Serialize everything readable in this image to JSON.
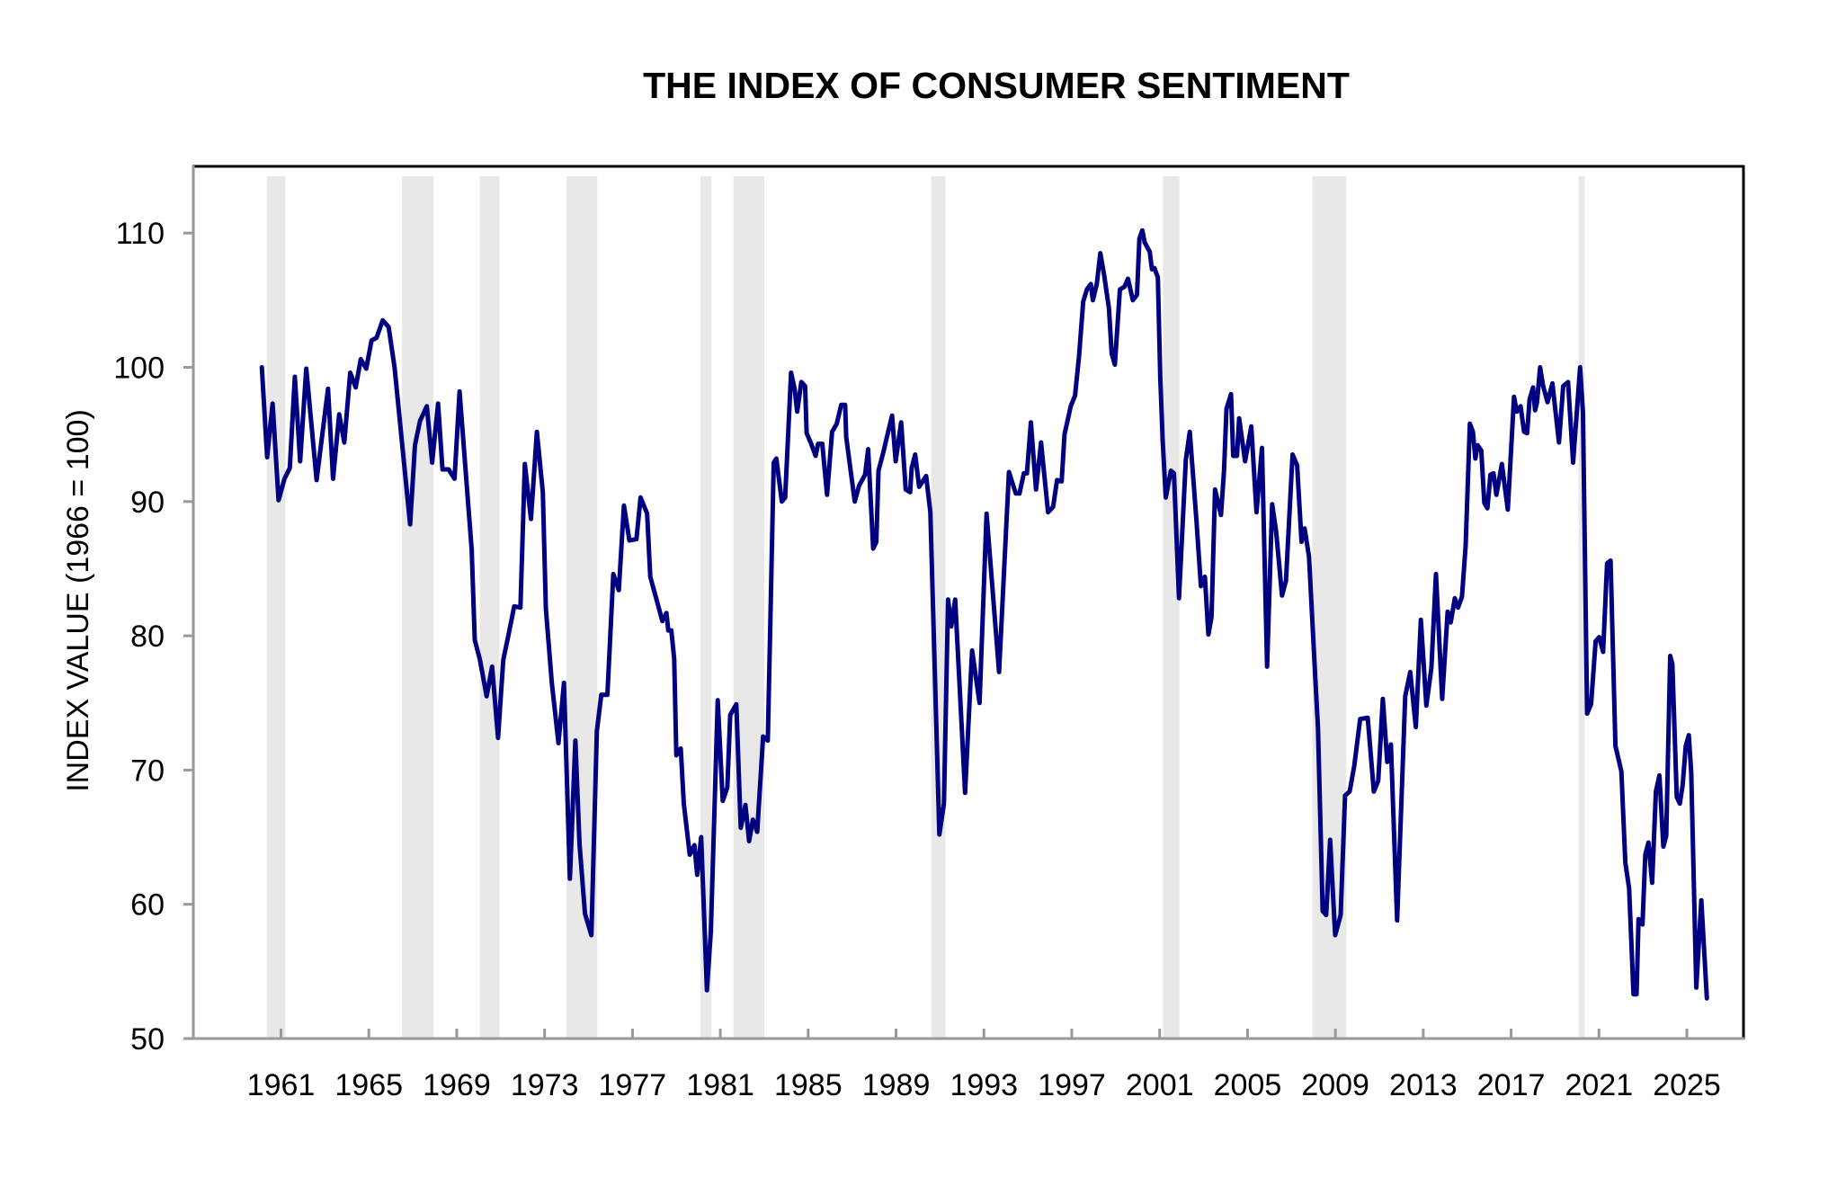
{
  "chart_data": {
    "type": "line",
    "title": "THE INDEX OF CONSUMER SENTIMENT",
    "xlabel": "",
    "ylabel": "INDEX VALUE (1966 = 100)",
    "xlim": [
      1959.5,
      2027.2
    ],
    "ylim": [
      50,
      114
    ],
    "grid": false,
    "legend": null,
    "x_ticks": [
      1961,
      1965,
      1969,
      1973,
      1977,
      1981,
      1985,
      1989,
      1993,
      1997,
      2001,
      2005,
      2009,
      2013,
      2017,
      2021,
      2025
    ],
    "x_tick_labels": [
      "1961",
      "1965",
      "1969",
      "1973",
      "1977",
      "1981",
      "1985",
      "1989",
      "1993",
      "1997",
      "2001",
      "2005",
      "2009",
      "2013",
      "2017",
      "2021",
      "2025"
    ],
    "y_ticks": [
      50,
      60,
      70,
      80,
      90,
      100,
      110
    ],
    "y_tick_labels": [
      "50",
      "60",
      "70",
      "80",
      "90",
      "100",
      "110"
    ],
    "colors": {
      "line": "#000080",
      "recession_band": "#e8e8e8",
      "axis": "#999999",
      "frame": "#000000"
    },
    "recession_bands": [
      [
        1960.35,
        1961.2
      ],
      [
        1966.5,
        1967.95
      ],
      [
        1970.05,
        1970.95
      ],
      [
        1974.0,
        1975.4
      ],
      [
        1980.1,
        1980.6
      ],
      [
        1981.6,
        1983.0
      ],
      [
        1990.6,
        1991.25
      ],
      [
        2001.15,
        2001.9
      ],
      [
        2007.95,
        2009.5
      ],
      [
        2020.07,
        2020.35
      ]
    ],
    "series": [
      {
        "name": "Index of Consumer Sentiment",
        "x": [
          1960.13,
          1960.37,
          1960.62,
          1960.89,
          1961.16,
          1961.4,
          1961.63,
          1961.87,
          1962.15,
          1962.62,
          1963.14,
          1963.37,
          1963.65,
          1963.88,
          1964.15,
          1964.4,
          1964.63,
          1964.88,
          1965.12,
          1965.35,
          1965.63,
          1965.9,
          1966.17,
          1966.88,
          1967.1,
          1967.33,
          1967.64,
          1967.88,
          1968.15,
          1968.35,
          1968.63,
          1968.9,
          1969.13,
          1969.68,
          1969.82,
          1970.06,
          1970.36,
          1970.61,
          1970.88,
          1971.12,
          1971.36,
          1971.62,
          1971.9,
          1972.1,
          1972.38,
          1972.65,
          1972.92,
          1973.06,
          1973.33,
          1973.63,
          1973.88,
          1974.15,
          1974.4,
          1974.59,
          1974.84,
          1975.13,
          1975.38,
          1975.58,
          1975.86,
          1976.13,
          1976.38,
          1976.61,
          1976.86,
          1977.18,
          1977.37,
          1977.67,
          1977.81,
          1978.18,
          1978.36,
          1978.55,
          1978.63,
          1978.77,
          1978.9,
          1979.0,
          1979.2,
          1979.34,
          1979.61,
          1979.82,
          1979.95,
          1980.13,
          1980.39,
          1980.57,
          1980.88,
          1981.11,
          1981.32,
          1981.45,
          1981.73,
          1981.93,
          1982.14,
          1982.31,
          1982.48,
          1982.68,
          1982.95,
          1983.16,
          1983.43,
          1983.55,
          1983.8,
          1983.95,
          1984.22,
          1984.38,
          1984.5,
          1984.69,
          1984.86,
          1984.93,
          1985.14,
          1985.34,
          1985.45,
          1985.64,
          1985.86,
          1986.09,
          1986.3,
          1986.5,
          1986.68,
          1986.73,
          1987.12,
          1987.32,
          1987.59,
          1987.73,
          1987.96,
          1988.1,
          1988.2,
          1988.41,
          1988.82,
          1988.98,
          1989.23,
          1989.44,
          1989.64,
          1989.71,
          1989.87,
          1990.05,
          1990.37,
          1990.56,
          1990.97,
          1991.18,
          1991.37,
          1991.51,
          1991.69,
          1992.14,
          1992.46,
          1992.8,
          1993.12,
          1993.69,
          1994.14,
          1994.45,
          1994.62,
          1994.82,
          1994.96,
          1995.14,
          1995.37,
          1995.6,
          1995.92,
          1996.15,
          1996.33,
          1996.54,
          1996.67,
          1996.95,
          1997.15,
          1997.33,
          1997.52,
          1997.69,
          1997.87,
          1997.96,
          1998.14,
          1998.3,
          1998.47,
          1998.69,
          1998.82,
          1998.96,
          1999.19,
          1999.4,
          1999.56,
          1999.78,
          1999.97,
          2000.08,
          2000.21,
          2000.32,
          2000.55,
          2000.65,
          2000.76,
          2000.92,
          2001.03,
          2001.14,
          2001.28,
          2001.51,
          2001.65,
          2001.88,
          2002.19,
          2002.37,
          2002.67,
          2002.88,
          2003.06,
          2003.22,
          2003.36,
          2003.52,
          2003.79,
          2003.93,
          2004.04,
          2004.25,
          2004.35,
          2004.52,
          2004.62,
          2004.89,
          2005.17,
          2005.41,
          2005.66,
          2005.89,
          2006.12,
          2006.3,
          2006.57,
          2006.75,
          2007.05,
          2007.26,
          2007.46,
          2007.6,
          2007.8,
          2008.08,
          2008.21,
          2008.42,
          2008.58,
          2008.76,
          2008.99,
          2009.24,
          2009.44,
          2009.65,
          2009.86,
          2010.13,
          2010.47,
          2010.75,
          2010.95,
          2011.16,
          2011.36,
          2011.53,
          2011.81,
          2012.18,
          2012.41,
          2012.66,
          2012.89,
          2013.14,
          2013.37,
          2013.58,
          2013.86,
          2014.11,
          2014.25,
          2014.44,
          2014.58,
          2014.76,
          2014.93,
          2015.12,
          2015.26,
          2015.37,
          2015.48,
          2015.64,
          2015.78,
          2015.92,
          2016.06,
          2016.2,
          2016.33,
          2016.58,
          2016.85,
          2017.13,
          2017.26,
          2017.43,
          2017.59,
          2017.73,
          2017.84,
          2018.0,
          2018.09,
          2018.18,
          2018.32,
          2018.46,
          2018.66,
          2018.88,
          2019.18,
          2019.37,
          2019.59,
          2019.82,
          2020.14,
          2020.27,
          2020.46,
          2020.64,
          2020.85,
          2021.01,
          2021.19,
          2021.37,
          2021.53,
          2021.75,
          2022.02,
          2022.2,
          2022.37,
          2022.57,
          2022.71,
          2022.8,
          2022.98,
          2023.11,
          2023.25,
          2023.42,
          2023.59,
          2023.75,
          2023.93,
          2024.06,
          2024.24,
          2024.34,
          2024.54,
          2024.68,
          2024.81,
          2024.95,
          2025.09,
          2025.2,
          2025.43,
          2025.66,
          2025.91
        ],
        "values": [
          100.0,
          93.3,
          97.3,
          90.1,
          91.7,
          92.5,
          99.3,
          93.0,
          99.9,
          91.6,
          98.4,
          91.7,
          96.5,
          94.4,
          99.6,
          98.5,
          100.6,
          99.9,
          102.0,
          102.2,
          103.5,
          103.0,
          100.0,
          88.3,
          94.2,
          96.0,
          97.1,
          92.9,
          97.3,
          92.4,
          92.4,
          91.7,
          98.2,
          86.4,
          79.7,
          78.2,
          75.5,
          77.7,
          72.4,
          78.2,
          80.1,
          82.2,
          82.1,
          92.8,
          88.7,
          95.2,
          90.7,
          82.0,
          76.5,
          72.0,
          76.5,
          61.9,
          72.2,
          64.5,
          59.3,
          57.7,
          72.9,
          75.6,
          75.6,
          84.6,
          83.4,
          89.7,
          87.1,
          87.2,
          90.3,
          89.1,
          84.4,
          82.2,
          81.1,
          81.7,
          80.4,
          80.4,
          78.3,
          71.1,
          71.6,
          67.5,
          63.7,
          64.4,
          62.2,
          65.0,
          53.6,
          58.0,
          75.2,
          67.7,
          68.7,
          74.1,
          74.9,
          65.7,
          67.4,
          64.7,
          66.3,
          65.4,
          72.5,
          72.2,
          92.9,
          93.2,
          90.0,
          90.3,
          99.6,
          98.4,
          96.7,
          98.9,
          98.6,
          95.1,
          94.3,
          93.4,
          94.3,
          94.3,
          90.5,
          95.2,
          95.8,
          97.2,
          97.2,
          94.8,
          90.0,
          91.2,
          92.0,
          93.9,
          86.5,
          87.0,
          92.3,
          93.6,
          96.4,
          93.0,
          95.9,
          90.9,
          90.7,
          92.5,
          93.5,
          91.1,
          91.9,
          89.2,
          65.2,
          67.5,
          82.7,
          80.7,
          82.7,
          68.3,
          78.9,
          75.0,
          89.1,
          77.3,
          92.2,
          90.6,
          90.6,
          92.1,
          92.1,
          95.9,
          90.9,
          94.4,
          89.2,
          89.6,
          91.6,
          91.5,
          95.0,
          97.1,
          97.9,
          100.8,
          104.9,
          105.8,
          106.2,
          105.0,
          106.2,
          108.5,
          106.9,
          104.4,
          101.0,
          100.2,
          105.8,
          106.0,
          106.6,
          105.0,
          105.4,
          109.6,
          110.2,
          109.3,
          108.6,
          107.3,
          107.4,
          106.7,
          99.2,
          94.5,
          90.3,
          92.3,
          92.1,
          82.8,
          93.1,
          95.2,
          88.7,
          83.7,
          84.4,
          80.1,
          81.4,
          90.9,
          89.0,
          92.3,
          96.9,
          98.0,
          93.4,
          93.4,
          96.2,
          93.0,
          95.6,
          89.2,
          94.0,
          77.7,
          89.8,
          87.8,
          83.0,
          84.1,
          93.5,
          92.7,
          87.0,
          88.0,
          85.9,
          77.0,
          73.1,
          59.5,
          59.2,
          64.8,
          57.7,
          59.2,
          68.1,
          68.4,
          70.3,
          73.8,
          73.9,
          68.4,
          69.2,
          75.3,
          70.6,
          71.9,
          58.8,
          75.5,
          77.3,
          73.2,
          81.2,
          74.8,
          77.6,
          84.6,
          75.3,
          81.8,
          81.0,
          82.8,
          82.1,
          82.9,
          86.7,
          95.8,
          95.2,
          93.2,
          94.2,
          93.8,
          89.9,
          89.5,
          92.0,
          92.1,
          90.5,
          92.8,
          89.4,
          97.8,
          96.7,
          97.1,
          95.2,
          95.1,
          97.6,
          98.5,
          96.8,
          97.4,
          100.0,
          98.6,
          97.4,
          98.8,
          94.4,
          98.6,
          98.9,
          92.9,
          100.0,
          96.6,
          74.2,
          74.9,
          79.6,
          79.9,
          78.8,
          85.4,
          85.6,
          71.8,
          69.9,
          63.1,
          61.2,
          53.3,
          53.3,
          58.9,
          58.5,
          63.7,
          64.6,
          61.6,
          68.4,
          69.6,
          64.3,
          65.1,
          78.5,
          77.9,
          68.0,
          67.5,
          68.9,
          71.8,
          72.6,
          69.8,
          53.8,
          60.3,
          53.0
        ]
      }
    ]
  }
}
